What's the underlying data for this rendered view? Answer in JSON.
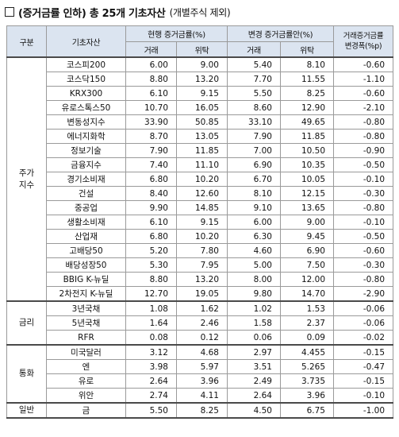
{
  "title": {
    "main": "(증거금률 인하) 총 25개 기초자산",
    "sub": "(개별주식 제외)"
  },
  "headers": {
    "category": "구분",
    "asset": "기초자산",
    "current": "현행 증거금률(%)",
    "changed": "변경 증거금률안(%)",
    "sub_exchange": "거래",
    "sub_consign": "위탁",
    "rate_change_line1": "거래증거금률",
    "rate_change_line2": "변경폭(%p)"
  },
  "groups": [
    {
      "category": "주가 지수",
      "rows": [
        {
          "asset": "코스피200",
          "cur_ex": "6.00",
          "cur_con": "9.00",
          "new_ex": "5.40",
          "new_con": "8.10",
          "change": "-0.60"
        },
        {
          "asset": "코스닥150",
          "cur_ex": "8.80",
          "cur_con": "13.20",
          "new_ex": "7.70",
          "new_con": "11.55",
          "change": "-1.10"
        },
        {
          "asset": "KRX300",
          "cur_ex": "6.10",
          "cur_con": "9.15",
          "new_ex": "5.50",
          "new_con": "8.25",
          "change": "-0.60"
        },
        {
          "asset": "유로스톡스50",
          "cur_ex": "10.70",
          "cur_con": "16.05",
          "new_ex": "8.60",
          "new_con": "12.90",
          "change": "-2.10"
        },
        {
          "asset": "변동성지수",
          "cur_ex": "33.90",
          "cur_con": "50.85",
          "new_ex": "33.10",
          "new_con": "49.65",
          "change": "-0.80"
        },
        {
          "asset": "에너지화학",
          "cur_ex": "8.70",
          "cur_con": "13.05",
          "new_ex": "7.90",
          "new_con": "11.85",
          "change": "-0.80"
        },
        {
          "asset": "정보기술",
          "cur_ex": "7.90",
          "cur_con": "11.85",
          "new_ex": "7.00",
          "new_con": "10.50",
          "change": "-0.90"
        },
        {
          "asset": "금융지수",
          "cur_ex": "7.40",
          "cur_con": "11.10",
          "new_ex": "6.90",
          "new_con": "10.35",
          "change": "-0.50"
        },
        {
          "asset": "경기소비재",
          "cur_ex": "6.80",
          "cur_con": "10.20",
          "new_ex": "6.70",
          "new_con": "10.05",
          "change": "-0.10"
        },
        {
          "asset": "건설",
          "cur_ex": "8.40",
          "cur_con": "12.60",
          "new_ex": "8.10",
          "new_con": "12.15",
          "change": "-0.30"
        },
        {
          "asset": "중공업",
          "cur_ex": "9.90",
          "cur_con": "14.85",
          "new_ex": "9.10",
          "new_con": "13.65",
          "change": "-0.80"
        },
        {
          "asset": "생활소비재",
          "cur_ex": "6.10",
          "cur_con": "9.15",
          "new_ex": "6.00",
          "new_con": "9.00",
          "change": "-0.10"
        },
        {
          "asset": "산업재",
          "cur_ex": "6.80",
          "cur_con": "10.20",
          "new_ex": "6.30",
          "new_con": "9.45",
          "change": "-0.50"
        },
        {
          "asset": "고배당50",
          "cur_ex": "5.20",
          "cur_con": "7.80",
          "new_ex": "4.60",
          "new_con": "6.90",
          "change": "-0.60"
        },
        {
          "asset": "배당성장50",
          "cur_ex": "5.30",
          "cur_con": "7.95",
          "new_ex": "5.00",
          "new_con": "7.50",
          "change": "-0.30"
        },
        {
          "asset": "BBIG K-뉴딜",
          "cur_ex": "8.80",
          "cur_con": "13.20",
          "new_ex": "8.00",
          "new_con": "12.00",
          "change": "-0.80"
        },
        {
          "asset": "2차전지 K-뉴딜",
          "cur_ex": "12.70",
          "cur_con": "19.05",
          "new_ex": "9.80",
          "new_con": "14.70",
          "change": "-2.90"
        }
      ]
    },
    {
      "category": "금리",
      "rows": [
        {
          "asset": "3년국채",
          "cur_ex": "1.08",
          "cur_con": "1.62",
          "new_ex": "1.02",
          "new_con": "1.53",
          "change": "-0.06"
        },
        {
          "asset": "5년국채",
          "cur_ex": "1.64",
          "cur_con": "2.46",
          "new_ex": "1.58",
          "new_con": "2.37",
          "change": "-0.06"
        },
        {
          "asset": "RFR",
          "cur_ex": "0.08",
          "cur_con": "0.12",
          "new_ex": "0.06",
          "new_con": "0.09",
          "change": "-0.02"
        }
      ]
    },
    {
      "category": "통화",
      "rows": [
        {
          "asset": "미국달러",
          "cur_ex": "3.12",
          "cur_con": "4.68",
          "new_ex": "2.97",
          "new_con": "4.455",
          "change": "-0.15"
        },
        {
          "asset": "엔",
          "cur_ex": "3.98",
          "cur_con": "5.97",
          "new_ex": "3.51",
          "new_con": "5.265",
          "change": "-0.47"
        },
        {
          "asset": "유로",
          "cur_ex": "2.64",
          "cur_con": "3.96",
          "new_ex": "2.49",
          "new_con": "3.735",
          "change": "-0.15"
        },
        {
          "asset": "위안",
          "cur_ex": "2.74",
          "cur_con": "4.11",
          "new_ex": "2.64",
          "new_con": "3.96",
          "change": "-0.10"
        }
      ]
    },
    {
      "category": "일반",
      "rows": [
        {
          "asset": "금",
          "cur_ex": "5.50",
          "cur_con": "8.25",
          "new_ex": "4.50",
          "new_con": "6.75",
          "change": "-1.00"
        }
      ]
    }
  ]
}
